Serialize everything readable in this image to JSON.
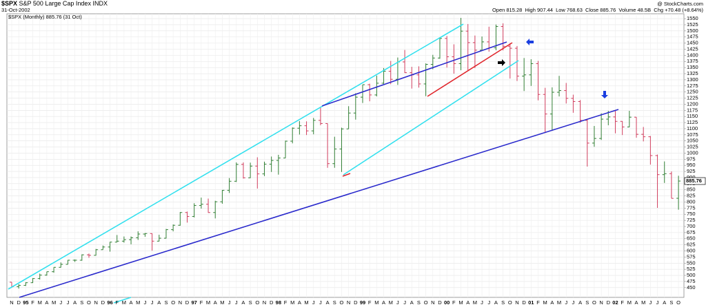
{
  "chart_data": {
    "type": "ohlc",
    "title": "$SPX",
    "subtitle": "S&P 500 Large Cap Index INDX",
    "date": "31-Oct-2002",
    "watermark": "@ StockCharts.com",
    "quote": "Open 815.28  High 907.44  Low 768.63  Close 885.76  Volume 48.5B  Chg +70.48 (+8.64%)",
    "legend": "$SPX (Monthly) 885.76 (31 Oct)",
    "last_price": 885.76,
    "up_color": "#2f7d32",
    "down_color": "#d03c5c",
    "grid": true,
    "categories": [
      "N",
      "D",
      "95",
      "F",
      "M",
      "A",
      "M",
      "J",
      "J",
      "A",
      "S",
      "O",
      "N",
      "D",
      "96",
      "F",
      "M",
      "A",
      "M",
      "J",
      "J",
      "A",
      "S",
      "O",
      "N",
      "D",
      "97",
      "F",
      "M",
      "A",
      "M",
      "J",
      "J",
      "A",
      "S",
      "O",
      "N",
      "D",
      "98",
      "F",
      "M",
      "A",
      "M",
      "J",
      "J",
      "A",
      "S",
      "O",
      "N",
      "D",
      "99",
      "F",
      "M",
      "A",
      "M",
      "J",
      "J",
      "A",
      "S",
      "O",
      "N",
      "D",
      "00",
      "F",
      "M",
      "A",
      "M",
      "J",
      "J",
      "A",
      "S",
      "O",
      "N",
      "D",
      "01",
      "F",
      "M",
      "A",
      "M",
      "J",
      "J",
      "A",
      "S",
      "O",
      "N",
      "D",
      "02",
      "F",
      "M",
      "A",
      "M",
      "J",
      "J",
      "A",
      "S",
      "O"
    ],
    "open": [
      472,
      454,
      459,
      470,
      487,
      501,
      515,
      533,
      545,
      562,
      562,
      584,
      582,
      605,
      616,
      636,
      640,
      646,
      654,
      669,
      671,
      640,
      652,
      687,
      705,
      757,
      741,
      786,
      791,
      757,
      801,
      848,
      885,
      954,
      899,
      947,
      915,
      955,
      970,
      980,
      1049,
      1102,
      1112,
      1091,
      1134,
      1121,
      957,
      1017,
      1099,
      1164,
      1229,
      1280,
      1238,
      1286,
      1335,
      1302,
      1373,
      1329,
      1320,
      1283,
      1363,
      1389,
      1469,
      1394,
      1366,
      1499,
      1452,
      1421,
      1455,
      1431,
      1518,
      1437,
      1429,
      1315,
      1320,
      1366,
      1240,
      1160,
      1249,
      1256,
      1224,
      1211,
      1134,
      1041,
      1060,
      1139,
      1148,
      1130,
      1107,
      1147,
      1077,
      1067,
      990,
      912,
      916,
      815.28
    ],
    "high": [
      472,
      464,
      472,
      489,
      507,
      515,
      533,
      553,
      563,
      565,
      586,
      589,
      608,
      622,
      637,
      665,
      659,
      659,
      680,
      673,
      672,
      666,
      690,
      708,
      759,
      761,
      795,
      818,
      814,
      805,
      849,
      898,
      962,
      962,
      961,
      983,
      965,
      986,
      993,
      1051,
      1105,
      1131,
      1130,
      1144,
      1190,
      1121,
      1067,
      1104,
      1192,
      1245,
      1280,
      1284,
      1317,
      1348,
      1377,
      1391,
      1422,
      1353,
      1355,
      1367,
      1402,
      1474,
      1479,
      1445,
      1553,
      1528,
      1481,
      1477,
      1517,
      1526,
      1531,
      1450,
      1438,
      1389,
      1384,
      1377,
      1267,
      1269,
      1316,
      1287,
      1239,
      1217,
      1137,
      1111,
      1163,
      1173,
      1176,
      1131,
      1173,
      1147,
      1107,
      1070,
      994,
      966,
      925,
      907.44
    ],
    "low": [
      449,
      446,
      457,
      469,
      483,
      499,
      511,
      532,
      545,
      555,
      560,
      572,
      581,
      605,
      597,
      635,
      634,
      627,
      645,
      658,
      601,
      639,
      651,
      680,
      703,
      716,
      737,
      773,
      756,
      733,
      793,
      837,
      882,
      896,
      898,
      855,
      906,
      923,
      912,
      980,
      1040,
      1076,
      1074,
      1077,
      1114,
      940,
      940,
      923,
      1099,
      1137,
      1205,
      1212,
      1232,
      1283,
      1282,
      1279,
      1328,
      1264,
      1268,
      1233,
      1343,
      1386,
      1350,
      1325,
      1339,
      1339,
      1348,
      1422,
      1415,
      1421,
      1420,
      1305,
      1295,
      1254,
      1275,
      1216,
      1082,
      1091,
      1232,
      1203,
      1165,
      1124,
      945,
      1026,
      1054,
      1114,
      1081,
      1074,
      1106,
      1063,
      1048,
      953,
      776,
      878,
      815,
      768.63
    ],
    "close": [
      454,
      459,
      470,
      487,
      501,
      515,
      533,
      545,
      562,
      562,
      584,
      582,
      605,
      616,
      636,
      640,
      646,
      654,
      669,
      671,
      640,
      652,
      687,
      705,
      757,
      741,
      786,
      791,
      757,
      801,
      848,
      885,
      954,
      899,
      947,
      915,
      955,
      970,
      980,
      1049,
      1102,
      1112,
      1091,
      1134,
      1121,
      957,
      1017,
      1099,
      1164,
      1229,
      1280,
      1238,
      1286,
      1335,
      1302,
      1373,
      1329,
      1320,
      1283,
      1363,
      1389,
      1469,
      1394,
      1366,
      1499,
      1452,
      1421,
      1455,
      1431,
      1518,
      1437,
      1429,
      1315,
      1320,
      1366,
      1240,
      1160,
      1249,
      1256,
      1224,
      1211,
      1134,
      1041,
      1060,
      1139,
      1148,
      1130,
      1107,
      1147,
      1077,
      1067,
      990,
      912,
      916,
      815,
      885.76
    ],
    "ylim": [
      410,
      1570
    ],
    "yticks": [
      450,
      475,
      500,
      525,
      550,
      575,
      600,
      625,
      650,
      675,
      700,
      725,
      750,
      775,
      800,
      825,
      850,
      875,
      900,
      925,
      950,
      975,
      1000,
      1025,
      1050,
      1075,
      1100,
      1125,
      1150,
      1175,
      1200,
      1225,
      1250,
      1275,
      1300,
      1325,
      1350,
      1375,
      1400,
      1425,
      1450,
      1475,
      1500,
      1525,
      1550
    ]
  }
}
